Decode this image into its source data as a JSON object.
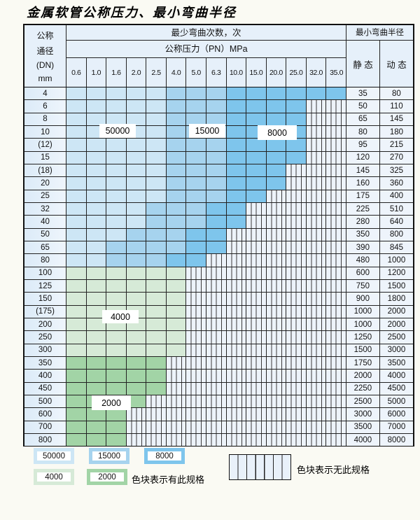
{
  "title": "金属软管公称压力、最小弯曲半径",
  "table": {
    "header": {
      "dn_label_lines": [
        "公称",
        "通径",
        "(DN)",
        "mm"
      ],
      "cycles_label": "最少弯曲次数，次",
      "pressure_label": "公称压力（PN）MPa",
      "pressure_columns": [
        "0.6",
        "1.0",
        "1.6",
        "2.0",
        "2.5",
        "4.0",
        "5.0",
        "6.3",
        "10.0",
        "15.0",
        "20.0",
        "25.0",
        "32.0",
        "35.0"
      ],
      "radius_label": "最小弯曲半径",
      "static_label": "静 态",
      "dynamic_label": "动 态"
    },
    "cell_legend_note": "cells string: L=50000 cycles, M=15000, D=8000, G=4000, g=2000, X=no spec (striped)",
    "rows": [
      {
        "dn": "4",
        "static": "35",
        "dynamic": "80",
        "cells": "LLLLLMMMDDDDDD"
      },
      {
        "dn": "6",
        "static": "50",
        "dynamic": "110",
        "cells": "LLLLLMMMDDDDXX"
      },
      {
        "dn": "8",
        "static": "65",
        "dynamic": "145",
        "cells": "LLLLLMMMDDDDXX"
      },
      {
        "dn": "10",
        "static": "80",
        "dynamic": "180",
        "cells": "LLLLLMMMDDDDXX"
      },
      {
        "dn": "(12)",
        "static": "95",
        "dynamic": "215",
        "cells": "LLLLLMMMDDDDXX"
      },
      {
        "dn": "15",
        "static": "120",
        "dynamic": "270",
        "cells": "LLLLLMMMDDDDXX"
      },
      {
        "dn": "(18)",
        "static": "145",
        "dynamic": "325",
        "cells": "LLLLLMMMDDDXXX"
      },
      {
        "dn": "20",
        "static": "160",
        "dynamic": "360",
        "cells": "LLLLLMMMDDDXXX"
      },
      {
        "dn": "25",
        "static": "175",
        "dynamic": "400",
        "cells": "LLLLLMMMDDXXXX"
      },
      {
        "dn": "32",
        "static": "225",
        "dynamic": "510",
        "cells": "LLLLMMMDDXXXXX"
      },
      {
        "dn": "40",
        "static": "280",
        "dynamic": "640",
        "cells": "LLLLMMMDDXXXXX"
      },
      {
        "dn": "50",
        "static": "350",
        "dynamic": "800",
        "cells": "LLLMMMDDXXXXXX"
      },
      {
        "dn": "65",
        "static": "390",
        "dynamic": "845",
        "cells": "LLMMMMDDXXXXXX"
      },
      {
        "dn": "80",
        "static": "480",
        "dynamic": "1000",
        "cells": "LLMMMDDXXXXXXX"
      },
      {
        "dn": "100",
        "static": "600",
        "dynamic": "1200",
        "cells": "GGGGGGXXXXXXXX"
      },
      {
        "dn": "125",
        "static": "750",
        "dynamic": "1500",
        "cells": "GGGGGGXXXXXXXX"
      },
      {
        "dn": "150",
        "static": "900",
        "dynamic": "1800",
        "cells": "GGGGGGXXXXXXXX"
      },
      {
        "dn": "(175)",
        "static": "1000",
        "dynamic": "2000",
        "cells": "GGGGGGXXXXXXXX"
      },
      {
        "dn": "200",
        "static": "1000",
        "dynamic": "2000",
        "cells": "GGGGGGXXXXXXXX"
      },
      {
        "dn": "250",
        "static": "1250",
        "dynamic": "2500",
        "cells": "GGGGGGXXXXXXXX"
      },
      {
        "dn": "300",
        "static": "1500",
        "dynamic": "3000",
        "cells": "GGGGGGXXXXXXXX"
      },
      {
        "dn": "350",
        "static": "1750",
        "dynamic": "3500",
        "cells": "gggggXXXXXXXXX"
      },
      {
        "dn": "400",
        "static": "2000",
        "dynamic": "4000",
        "cells": "gggggXXXXXXXXX"
      },
      {
        "dn": "450",
        "static": "2250",
        "dynamic": "4500",
        "cells": "gggggXXXXXXXXX"
      },
      {
        "dn": "500",
        "static": "2500",
        "dynamic": "5000",
        "cells": "ggggXXXXXXXXXX"
      },
      {
        "dn": "600",
        "static": "3000",
        "dynamic": "6000",
        "cells": "gggXXXXXXXXXXX"
      },
      {
        "dn": "700",
        "static": "3500",
        "dynamic": "7000",
        "cells": "gggXXXXXXXXXXX"
      },
      {
        "dn": "800",
        "static": "4000",
        "dynamic": "8000",
        "cells": "gggXXXXXXXXXXX"
      }
    ]
  },
  "overlays": {
    "cycles_50000": "50000",
    "cycles_15000": "15000",
    "cycles_8000": "8000",
    "cycles_4000": "4000",
    "cycles_2000": "2000"
  },
  "legend": {
    "items": [
      {
        "label": "50000",
        "color_key": "c50000"
      },
      {
        "label": "15000",
        "color_key": "c15000"
      },
      {
        "label": "8000",
        "color_key": "c8000"
      },
      {
        "label": "4000",
        "color_key": "c4000"
      },
      {
        "label": "2000",
        "color_key": "c2000"
      }
    ],
    "has_spec_text": "色块表示有此规格",
    "no_spec_text": "色块表示无此规格"
  },
  "colors": {
    "c50000": "#cde6f5",
    "c15000": "#a6d3ee",
    "c8000": "#7ec5ec",
    "c4000": "#d6ead7",
    "c2000": "#a2d4a6"
  }
}
